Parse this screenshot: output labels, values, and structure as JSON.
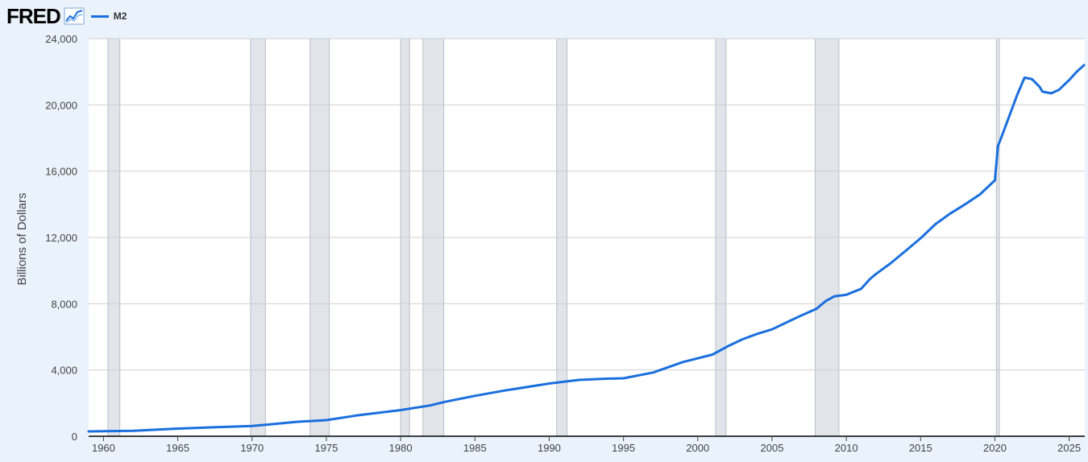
{
  "header": {
    "logo_text": "FRED",
    "logo_icon": "line-chart-icon",
    "legend": [
      {
        "name": "M2",
        "color": "#1a6fde"
      }
    ]
  },
  "chart_data": {
    "type": "line",
    "ylabel": "Billions of Dollars",
    "xlim": [
      1959,
      2026.05
    ],
    "ylim": [
      0,
      24000
    ],
    "yticks": [
      0,
      4000,
      8000,
      12000,
      16000,
      20000,
      24000
    ],
    "ytick_labels": [
      "0",
      "4,000",
      "8,000",
      "12,000",
      "16,000",
      "20,000",
      "24,000"
    ],
    "xticks": [
      1960,
      1965,
      1970,
      1975,
      1980,
      1985,
      1990,
      1995,
      2000,
      2005,
      2010,
      2015,
      2020,
      2025
    ],
    "xtick_labels": [
      "1960",
      "1965",
      "1970",
      "1975",
      "1980",
      "1985",
      "1990",
      "1995",
      "2000",
      "2005",
      "2010",
      "2015",
      "2020",
      "2025"
    ],
    "grid": "horizontal",
    "recession_shading": [
      [
        1960.3,
        1961.1
      ],
      [
        1969.9,
        1970.9
      ],
      [
        1973.9,
        1975.2
      ],
      [
        1980.0,
        1980.6
      ],
      [
        1981.5,
        1982.9
      ],
      [
        1990.5,
        1991.2
      ],
      [
        2001.2,
        2001.9
      ],
      [
        2007.9,
        2009.5
      ],
      [
        2020.1,
        2020.3
      ]
    ],
    "series": [
      {
        "name": "M2",
        "color": "#1a6fde",
        "points": [
          [
            1959.0,
            290
          ],
          [
            1962.0,
            330
          ],
          [
            1965.0,
            460
          ],
          [
            1968.0,
            560
          ],
          [
            1970.0,
            620
          ],
          [
            1971.0,
            700
          ],
          [
            1973.0,
            870
          ],
          [
            1975.0,
            970
          ],
          [
            1977.0,
            1250
          ],
          [
            1980.0,
            1580
          ],
          [
            1982.0,
            1860
          ],
          [
            1983.0,
            2080
          ],
          [
            1985.0,
            2440
          ],
          [
            1987.0,
            2760
          ],
          [
            1990.0,
            3180
          ],
          [
            1992.0,
            3400
          ],
          [
            1994.0,
            3480
          ],
          [
            1995.0,
            3500
          ],
          [
            1997.0,
            3850
          ],
          [
            1999.0,
            4480
          ],
          [
            2001.0,
            4930
          ],
          [
            2002.0,
            5420
          ],
          [
            2003.0,
            5850
          ],
          [
            2004.0,
            6180
          ],
          [
            2005.0,
            6450
          ],
          [
            2006.0,
            6880
          ],
          [
            2007.0,
            7300
          ],
          [
            2008.0,
            7700
          ],
          [
            2008.6,
            8150
          ],
          [
            2009.2,
            8450
          ],
          [
            2010.0,
            8540
          ],
          [
            2011.0,
            8900
          ],
          [
            2011.6,
            9500
          ],
          [
            2012.0,
            9800
          ],
          [
            2013.0,
            10450
          ],
          [
            2014.0,
            11200
          ],
          [
            2015.0,
            11950
          ],
          [
            2016.0,
            12800
          ],
          [
            2017.0,
            13450
          ],
          [
            2018.0,
            14000
          ],
          [
            2019.0,
            14600
          ],
          [
            2020.0,
            15450
          ],
          [
            2020.2,
            17500
          ],
          [
            2020.5,
            18200
          ],
          [
            2021.0,
            19400
          ],
          [
            2021.5,
            20600
          ],
          [
            2022.0,
            21650
          ],
          [
            2022.5,
            21550
          ],
          [
            2023.0,
            21100
          ],
          [
            2023.2,
            20800
          ],
          [
            2023.8,
            20700
          ],
          [
            2024.3,
            20900
          ],
          [
            2025.0,
            21500
          ],
          [
            2025.5,
            22000
          ],
          [
            2026.0,
            22400
          ]
        ]
      }
    ]
  }
}
